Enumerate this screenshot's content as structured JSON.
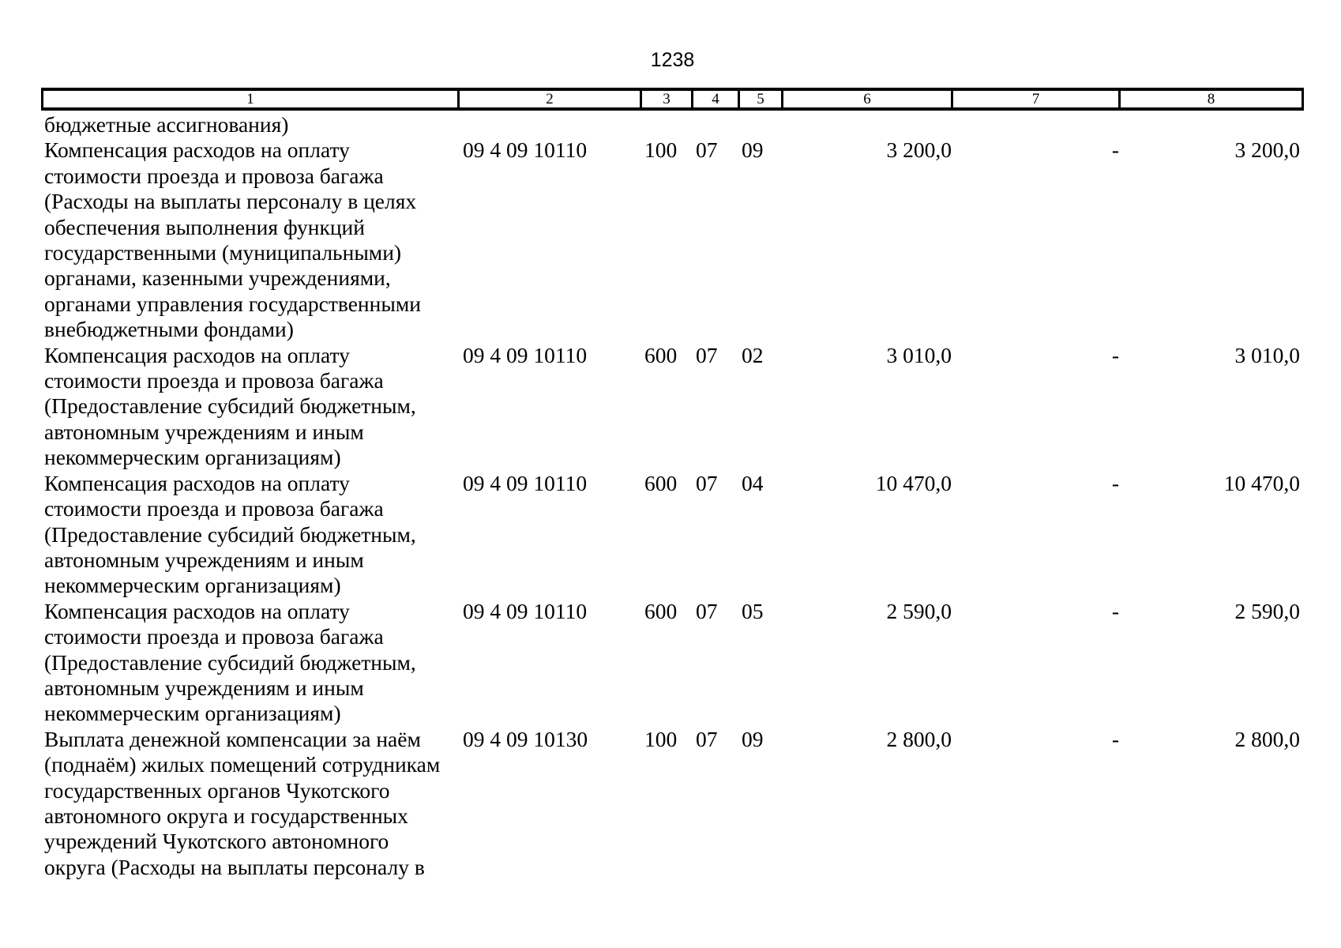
{
  "page": {
    "number": "1238"
  },
  "table": {
    "column_numbers": [
      "1",
      "2",
      "3",
      "4",
      "5",
      "6",
      "7",
      "8"
    ],
    "continuation_row": {
      "name_lines": [
        "бюджетные ассигнования)"
      ]
    },
    "rows": [
      {
        "name_lines": [
          "Компенсация расходов на оплату",
          "стоимости проезда и провоза багажа",
          "(Расходы на выплаты персоналу в целях",
          "обеспечения выполнения функций",
          "государственными (муниципальными)",
          "органами, казенными учреждениями,",
          "органами управления государственными",
          "внебюджетными фондами)"
        ],
        "cells": [
          "09 4 09 10110",
          "100",
          "07",
          "09",
          "3 200,0",
          "-",
          "3 200,0"
        ]
      },
      {
        "name_lines": [
          "Компенсация расходов на оплату",
          "стоимости проезда и провоза багажа",
          "(Предоставление субсидий бюджетным,",
          "автономным учреждениям и иным",
          "некоммерческим организациям)"
        ],
        "cells": [
          "09 4 09 10110",
          "600",
          "07",
          "02",
          "3 010,0",
          "-",
          "3 010,0"
        ]
      },
      {
        "name_lines": [
          "Компенсация расходов на оплату",
          "стоимости проезда и провоза багажа",
          "(Предоставление субсидий бюджетным,",
          "автономным учреждениям и иным",
          "некоммерческим организациям)"
        ],
        "cells": [
          "09 4 09 10110",
          "600",
          "07",
          "04",
          "10 470,0",
          "-",
          "10 470,0"
        ]
      },
      {
        "name_lines": [
          "Компенсация расходов на оплату",
          "стоимости проезда и провоза багажа",
          "(Предоставление субсидий бюджетным,",
          "автономным учреждениям и иным",
          "некоммерческим организациям)"
        ],
        "cells": [
          "09 4 09 10110",
          "600",
          "07",
          "05",
          "2 590,0",
          "-",
          "2 590,0"
        ]
      },
      {
        "name_lines": [
          "Выплата денежной компенсации за наём",
          "(поднаём) жилых помещений сотрудникам",
          "государственных органов Чукотского",
          "автономного округа и государственных",
          "учреждений Чукотского автономного",
          "округа (Расходы на выплаты персоналу в"
        ],
        "cells": [
          "09 4 09 10130",
          "100",
          "07",
          "09",
          "2 800,0",
          "-",
          "2 800,0"
        ]
      }
    ]
  }
}
